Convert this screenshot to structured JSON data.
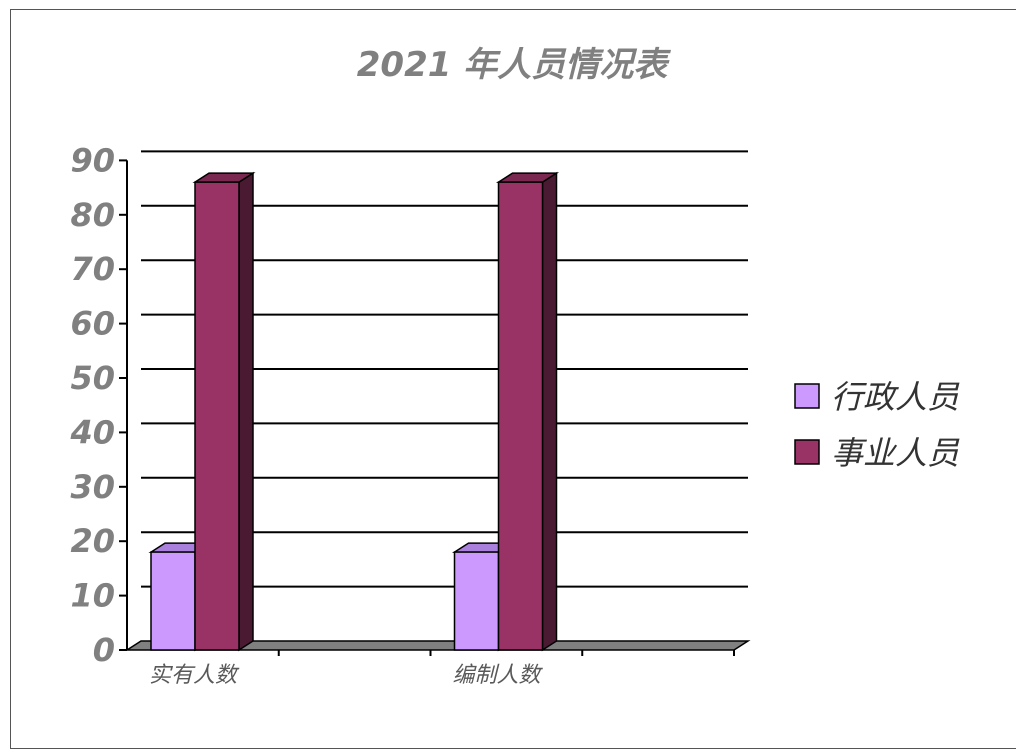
{
  "chart_data": {
    "type": "bar",
    "title": "2021 年人员情况表",
    "categories": [
      "实有人数",
      "编制人数"
    ],
    "series": [
      {
        "name": "行政人员",
        "values": [
          18,
          18
        ],
        "color": "#CC99FF",
        "side_color": "#9966CC",
        "top_color": "#AA80DD"
      },
      {
        "name": "事业人员",
        "values": [
          86,
          86
        ],
        "color": "#993366",
        "side_color": "#4A1A33",
        "top_color": "#7A2850"
      }
    ],
    "yticks": [
      "0",
      "10",
      "20",
      "30",
      "40",
      "50",
      "60",
      "70",
      "80",
      "90"
    ],
    "ylim": [
      0,
      90
    ],
    "xlabel": "",
    "ylabel": "",
    "grid": true,
    "legend": "right"
  }
}
